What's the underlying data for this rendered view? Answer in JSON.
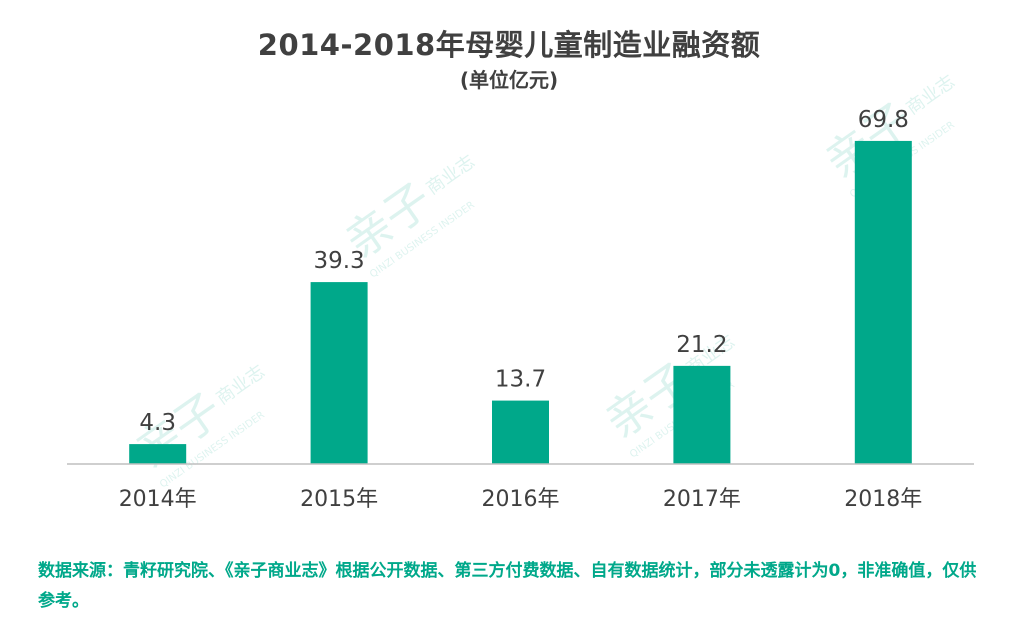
{
  "chart_data": {
    "type": "bar",
    "title": "2014-2018年母婴儿童制造业融资额",
    "subtitle": "(单位亿元)",
    "categories": [
      "2014年",
      "2015年",
      "2016年",
      "2017年",
      "2018年"
    ],
    "values": [
      4.3,
      39.3,
      13.7,
      21.2,
      69.8
    ],
    "value_labels": [
      "4.3",
      "39.3",
      "13.7",
      "21.2",
      "69.8"
    ],
    "xlabel": "",
    "ylabel": "",
    "ylim": [
      0,
      70
    ],
    "grid": false,
    "legend": "none",
    "bar_color": "#00a88a"
  },
  "footnote": "数据来源：青籽研究院、《亲子商业志》根据公开数据、第三方付费数据、自有数据统计，部分未透露计为0，非准确值，仅供参考。",
  "watermark": {
    "main": "亲子",
    "side": "商业志",
    "sub": "QINZI BUSINESS INSIDER"
  },
  "colors": {
    "bar": "#00a88a",
    "axis": "#bfbfbf",
    "title": "#404040",
    "footnote": "#00a88a"
  }
}
